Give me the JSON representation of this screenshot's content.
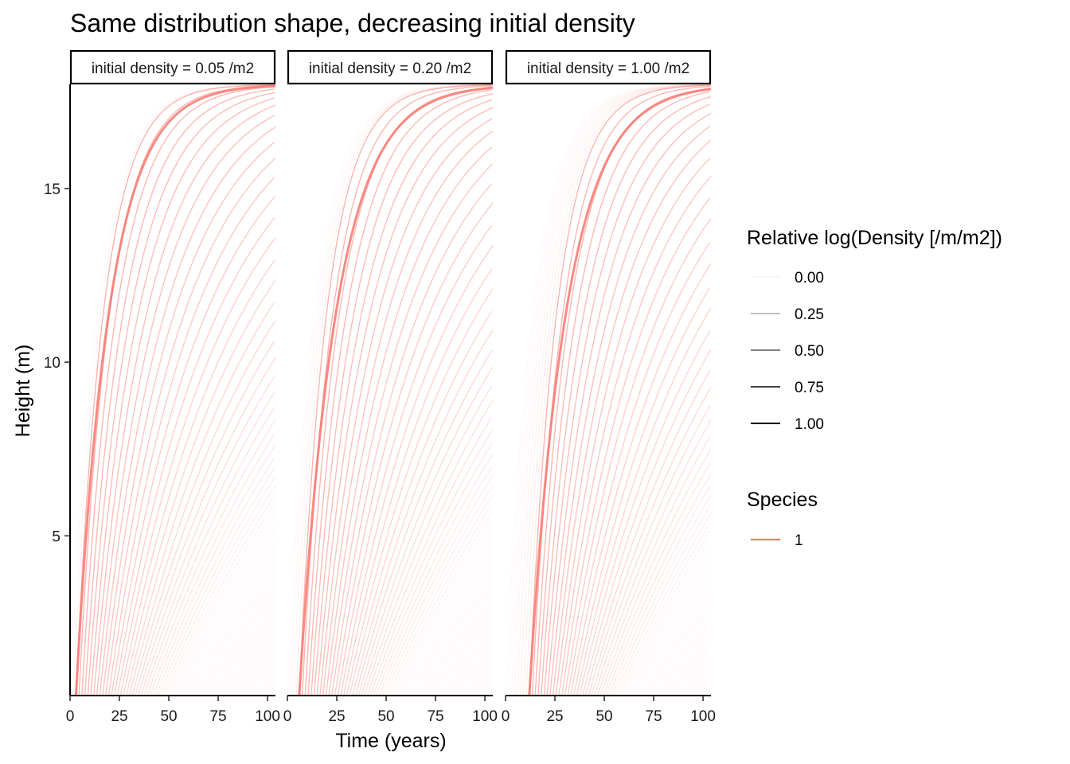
{
  "chart_data": {
    "type": "line",
    "title": "Same distribution shape, decreasing initial density",
    "xlabel": "Time (years)",
    "ylabel": "Height (m)",
    "xlim": [
      0,
      104
    ],
    "ylim": [
      0.4,
      18
    ],
    "x_ticks": [
      0,
      25,
      50,
      75,
      100
    ],
    "x_tick_labels": [
      "0",
      "25",
      "50",
      "75",
      "100"
    ],
    "y_ticks": [
      5,
      10,
      15
    ],
    "y_tick_labels": [
      "5",
      "10",
      "15"
    ],
    "grid": false,
    "series_color": "#F8766D",
    "series_description": "one trajectory per cohort introduced over time; a dense cohort climbs from ~0.4 m to ~18 m",
    "panels": [
      {
        "strip": "initial density = 0.05 /m2",
        "dominant_cohort_start_year": 3,
        "dominant_cohort_reach_14m_year": 28
      },
      {
        "strip": "initial density = 0.20 /m2",
        "dominant_cohort_start_year": 6,
        "dominant_cohort_reach_14m_year": 34
      },
      {
        "strip": "initial density = 1.00 /m2",
        "dominant_cohort_start_year": 12,
        "dominant_cohort_reach_14m_year": 40
      }
    ],
    "legends": [
      {
        "title": "Relative log(Density [/m/m2])",
        "aesthetic": "alpha",
        "entries": [
          {
            "label": "0.00",
            "value": 0.0
          },
          {
            "label": "0.25",
            "value": 0.25
          },
          {
            "label": "0.50",
            "value": 0.5
          },
          {
            "label": "0.75",
            "value": 0.75
          },
          {
            "label": "1.00",
            "value": 1.0
          }
        ]
      },
      {
        "title": "Species",
        "aesthetic": "colour",
        "entries": [
          {
            "label": "1",
            "color": "#F8766D"
          }
        ]
      }
    ]
  }
}
